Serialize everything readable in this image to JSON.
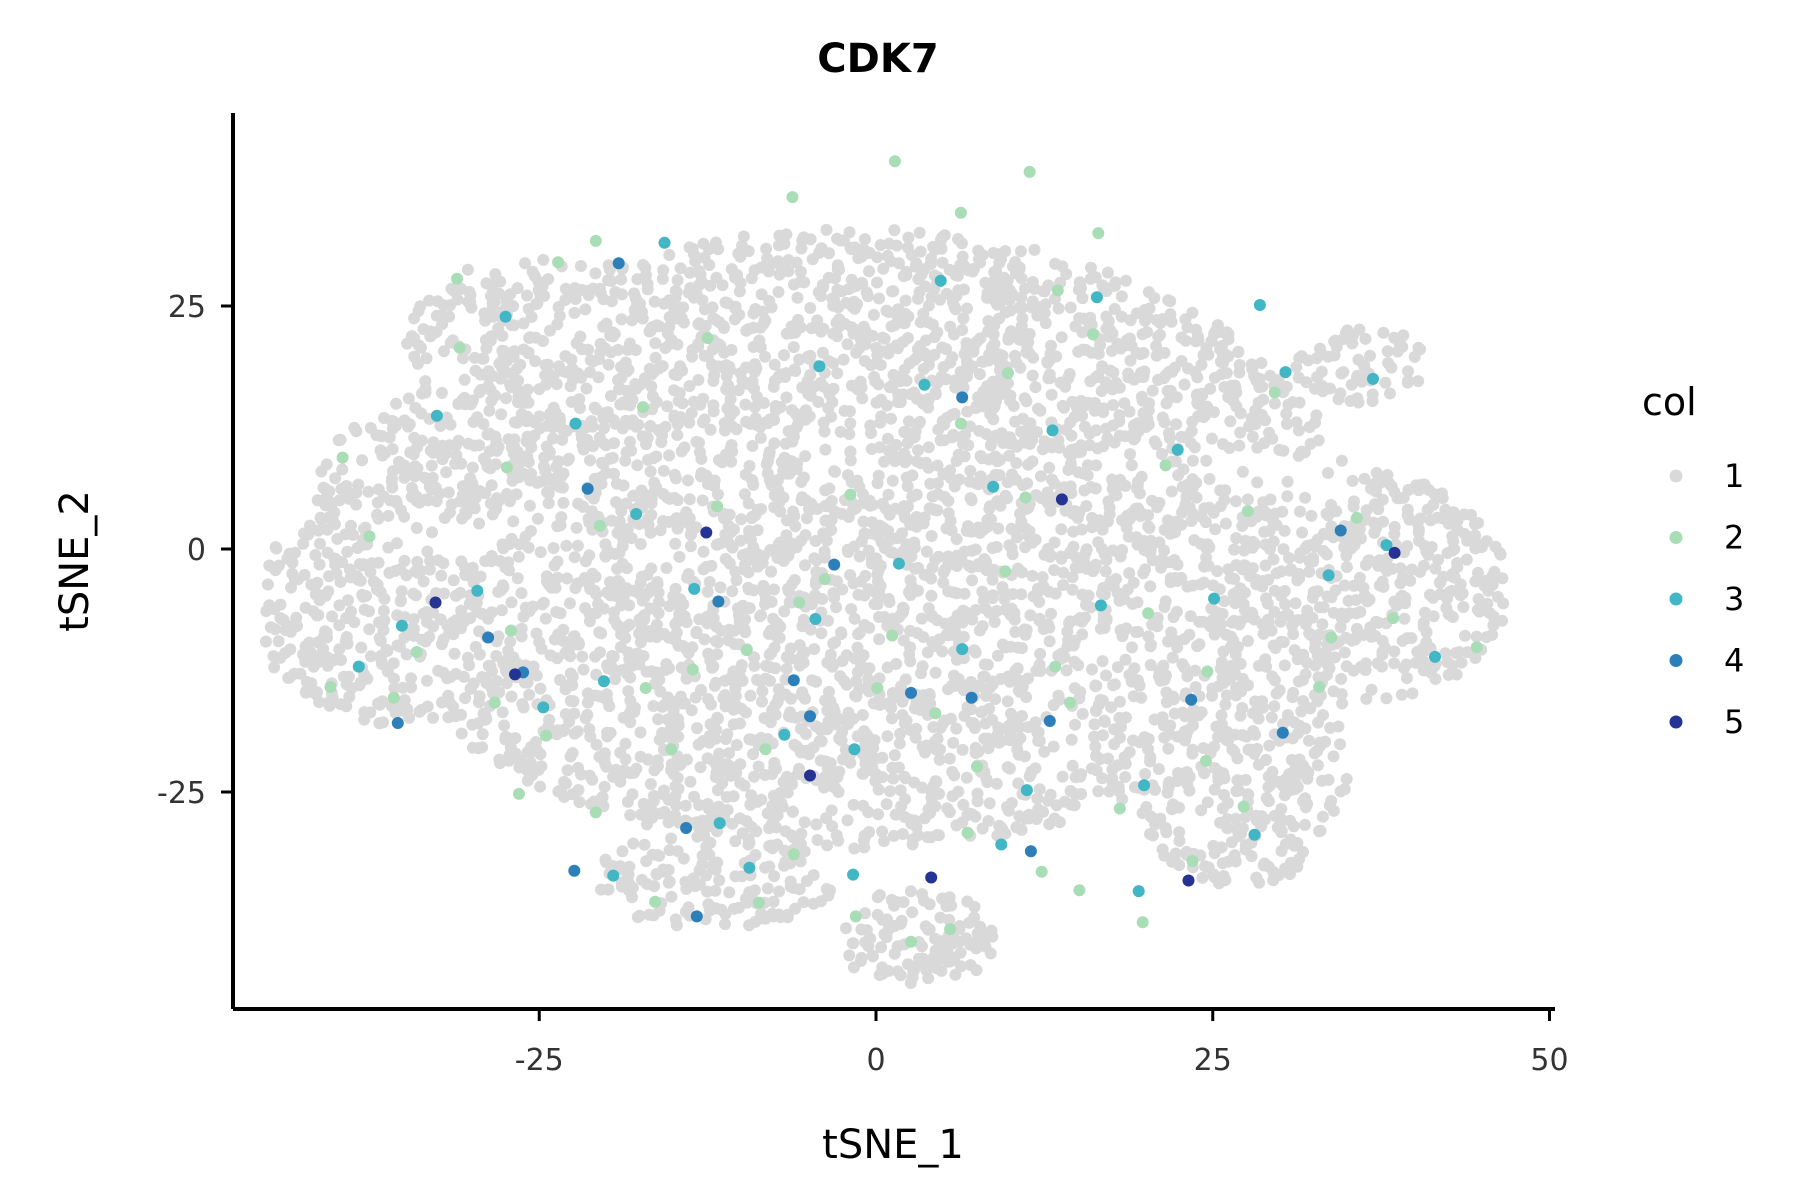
{
  "chart_data": {
    "type": "scatter",
    "title": "CDK7",
    "xlabel": "tSNE_1",
    "ylabel": "tSNE_2",
    "xlim": [
      -48,
      50
    ],
    "ylim": [
      -47,
      45
    ],
    "x_ticks": [
      -25,
      0,
      25,
      50
    ],
    "x_tick_labels": [
      "-25",
      "0",
      "25",
      "50"
    ],
    "y_ticks": [
      -25,
      0,
      25
    ],
    "y_tick_labels": [
      "-25",
      "0",
      "25"
    ],
    "grid": false,
    "legend": {
      "title": "col",
      "placement": "right",
      "entries": [
        {
          "label": "1",
          "color": "#d9d9d9"
        },
        {
          "label": "2",
          "color": "#a8ddb5"
        },
        {
          "label": "3",
          "color": "#41b6c4"
        },
        {
          "label": "4",
          "color": "#2c7fb8"
        },
        {
          "label": "5",
          "color": "#253494"
        }
      ]
    },
    "series": [
      {
        "name": "2",
        "color": "#a8ddb5",
        "points": [
          [
            -39.6,
            9.4
          ],
          [
            -40.5,
            -14.2
          ],
          [
            -30.9,
            20.7
          ],
          [
            -28.3,
            -15.8
          ],
          [
            -35.8,
            -15.3
          ],
          [
            -31.1,
            27.8
          ],
          [
            -27.1,
            -8.4
          ],
          [
            -24.5,
            -19.2
          ],
          [
            -20.8,
            -27.1
          ],
          [
            -17.1,
            -14.3
          ],
          [
            -16.4,
            -36.3
          ],
          [
            -13.6,
            -12.4
          ],
          [
            -6.1,
            -31.4
          ],
          [
            -8.2,
            -20.6
          ],
          [
            -1.9,
            5.6
          ],
          [
            -5.7,
            -5.5
          ],
          [
            1.2,
            -8.9
          ],
          [
            4.4,
            -16.9
          ],
          [
            6.3,
            12.9
          ],
          [
            7.5,
            -22.4
          ],
          [
            11.1,
            5.3
          ],
          [
            9.8,
            18.1
          ],
          [
            13.5,
            26.6
          ],
          [
            16.1,
            22.1
          ],
          [
            18.1,
            -26.7
          ],
          [
            21.5,
            8.6
          ],
          [
            24.6,
            -12.6
          ],
          [
            27.3,
            -26.5
          ],
          [
            29.6,
            16.1
          ],
          [
            33.8,
            -9.1
          ],
          [
            38.4,
            -7.1
          ],
          [
            44.6,
            -10.1
          ],
          [
            -12.5,
            21.7
          ],
          [
            -6.2,
            36.2
          ],
          [
            1.4,
            39.9
          ],
          [
            6.3,
            34.6
          ],
          [
            11.4,
            38.8
          ],
          [
            16.5,
            32.5
          ],
          [
            -23.6,
            29.5
          ],
          [
            -20.8,
            31.7
          ],
          [
            15.1,
            -35.1
          ],
          [
            19.8,
            -38.4
          ],
          [
            -1.5,
            -37.8
          ],
          [
            2.6,
            -40.4
          ],
          [
            5.5,
            -39.1
          ],
          [
            -3.8,
            -3.1
          ],
          [
            -9.6,
            -10.4
          ],
          [
            -11.8,
            4.4
          ],
          [
            -17.3,
            14.6
          ],
          [
            -20.5,
            2.4
          ],
          [
            9.6,
            -2.3
          ],
          [
            14.4,
            -15.8
          ],
          [
            20.2,
            -6.6
          ],
          [
            27.6,
            3.9
          ],
          [
            32.9,
            -14.2
          ],
          [
            35.7,
            3.2
          ],
          [
            24.5,
            -21.8
          ],
          [
            23.5,
            -32.1
          ],
          [
            -26.5,
            -25.2
          ],
          [
            -34.1,
            -10.6
          ],
          [
            -37.6,
            1.3
          ],
          [
            -27.4,
            8.4
          ],
          [
            -15.2,
            -20.6
          ],
          [
            -8.7,
            -36.4
          ],
          [
            0.1,
            -14.3
          ],
          [
            6.8,
            -29.2
          ],
          [
            12.3,
            -33.2
          ],
          [
            13.3,
            -12.1
          ]
        ]
      },
      {
        "name": "3",
        "color": "#41b6c4",
        "points": [
          [
            -35.2,
            -7.9
          ],
          [
            -29.6,
            -4.3
          ],
          [
            -27.5,
            23.9
          ],
          [
            -22.3,
            12.9
          ],
          [
            -20.2,
            -13.6
          ],
          [
            -17.8,
            3.6
          ],
          [
            -13.5,
            -4.1
          ],
          [
            -11.6,
            -28.2
          ],
          [
            -9.4,
            -32.8
          ],
          [
            -6.8,
            -19.1
          ],
          [
            -4.5,
            -7.2
          ],
          [
            -1.6,
            -20.6
          ],
          [
            1.7,
            -1.5
          ],
          [
            3.6,
            16.9
          ],
          [
            6.4,
            -10.3
          ],
          [
            8.7,
            6.4
          ],
          [
            11.2,
            -24.8
          ],
          [
            13.1,
            12.2
          ],
          [
            16.7,
            -5.8
          ],
          [
            19.9,
            -24.3
          ],
          [
            22.4,
            10.2
          ],
          [
            25.1,
            -5.1
          ],
          [
            28.1,
            -29.4
          ],
          [
            30.4,
            18.2
          ],
          [
            33.6,
            -2.7
          ],
          [
            37.9,
            0.4
          ],
          [
            41.5,
            -11.1
          ],
          [
            -32.6,
            13.7
          ],
          [
            -15.7,
            31.5
          ],
          [
            -4.2,
            18.8
          ],
          [
            4.8,
            27.6
          ],
          [
            16.4,
            25.9
          ],
          [
            28.5,
            25.1
          ],
          [
            36.9,
            17.5
          ],
          [
            -24.7,
            -16.3
          ],
          [
            -19.5,
            -33.6
          ],
          [
            -1.7,
            -33.5
          ],
          [
            9.3,
            -30.4
          ],
          [
            19.5,
            -35.2
          ],
          [
            -38.4,
            -12.1
          ]
        ]
      },
      {
        "name": "4",
        "color": "#2c7fb8",
        "points": [
          [
            -35.5,
            -17.9
          ],
          [
            -28.8,
            -9.1
          ],
          [
            -21.4,
            6.2
          ],
          [
            -13.3,
            -37.8
          ],
          [
            -11.7,
            -5.4
          ],
          [
            -6.1,
            -13.5
          ],
          [
            -4.9,
            -17.2
          ],
          [
            -3.1,
            -1.6
          ],
          [
            2.6,
            -14.8
          ],
          [
            7.1,
            -15.3
          ],
          [
            12.9,
            -17.7
          ],
          [
            23.4,
            -15.5
          ],
          [
            30.2,
            -18.9
          ],
          [
            34.5,
            1.9
          ],
          [
            -19.1,
            29.4
          ],
          [
            6.4,
            15.6
          ],
          [
            -14.1,
            -28.7
          ],
          [
            -22.4,
            -33.1
          ],
          [
            11.5,
            -31.1
          ],
          [
            -26.2,
            -12.7
          ]
        ]
      },
      {
        "name": "5",
        "color": "#253494",
        "points": [
          [
            -26.8,
            -12.9
          ],
          [
            -4.9,
            -23.3
          ],
          [
            13.8,
            5.1
          ],
          [
            23.2,
            -34.1
          ],
          [
            38.5,
            -0.4
          ],
          [
            -12.6,
            1.7
          ],
          [
            4.1,
            -33.8
          ],
          [
            -32.7,
            -5.5
          ]
        ]
      }
    ]
  }
}
